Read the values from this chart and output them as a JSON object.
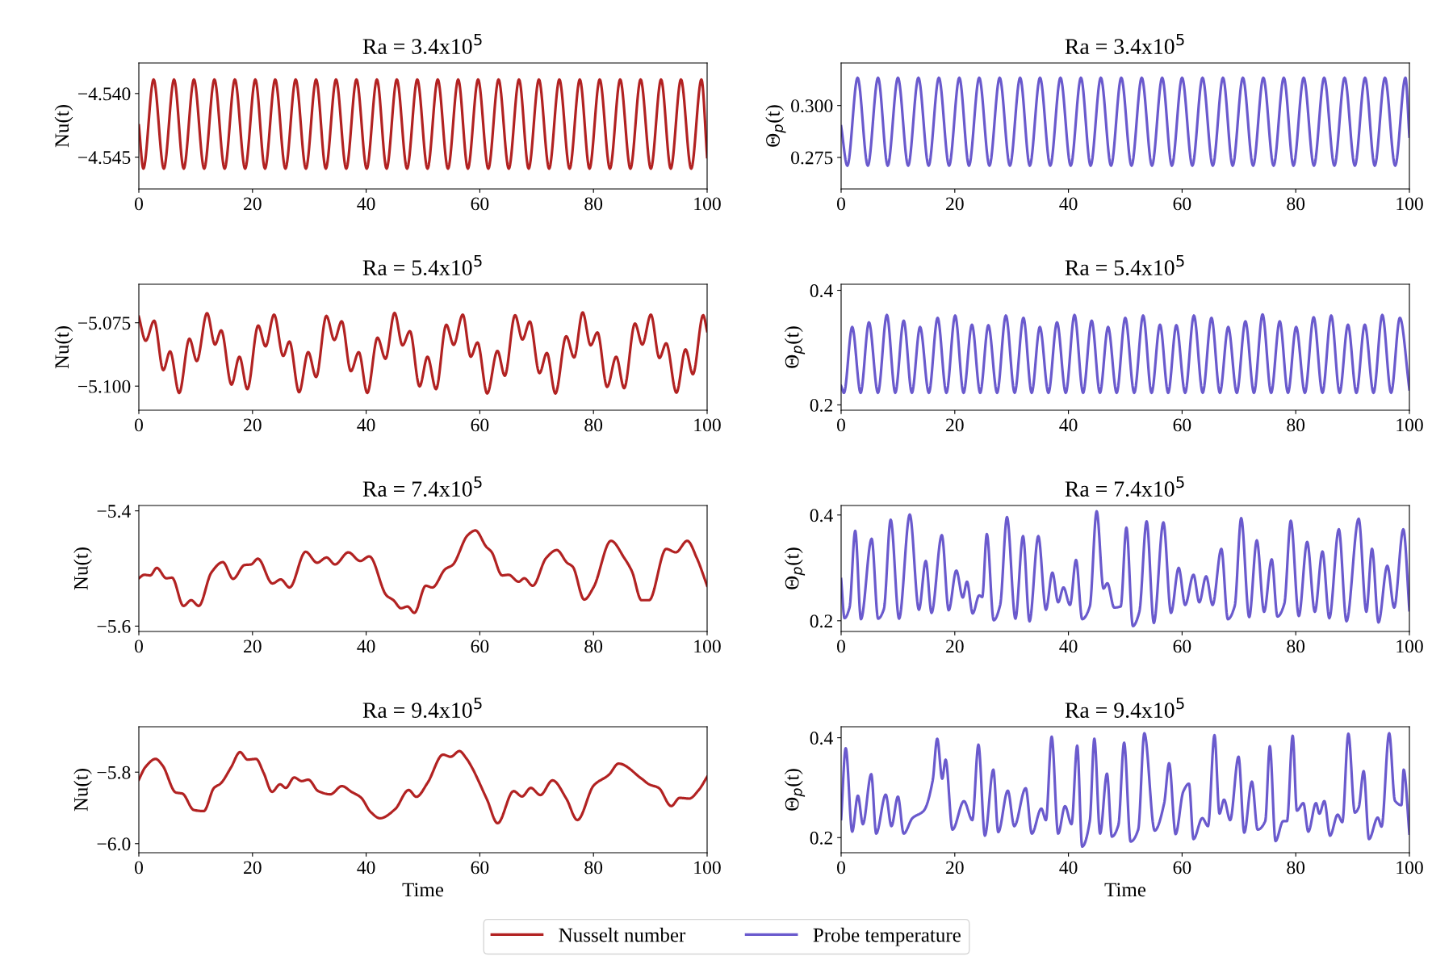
{
  "chart_data": [
    {
      "type": "line",
      "title": "Ra = 3.4x10$^{5}$",
      "ylabel": "Nu(t)",
      "xlim": [
        0,
        100
      ],
      "xticks": [
        0,
        20,
        40,
        60,
        80,
        100
      ],
      "ylim": [
        -4.5475,
        -4.5376
      ],
      "yticks": [
        {
          "value": -4.545,
          "label": "−4.545"
        },
        {
          "value": -4.54,
          "label": "−4.540"
        }
      ],
      "grid": false,
      "legend": "bottom",
      "marker": "none",
      "line_style": "solid",
      "series": [
        {
          "name": "Nusselt number",
          "color": "#b22222",
          "x": [
            0,
            0.8,
            2.6,
            4.4,
            6.2,
            7.9,
            9.7,
            11.5,
            13.3,
            15.1,
            16.9,
            18.7,
            20.5,
            22.2,
            24.0,
            25.8,
            27.6,
            29.4,
            31.2,
            32.9,
            34.7,
            36.5,
            38.3,
            40.1,
            41.9,
            43.6,
            45.4,
            47.2,
            49.0,
            50.8,
            52.6,
            54.4,
            56.2,
            57.9,
            59.7,
            61.5,
            63.3,
            65.1,
            66.9,
            68.6,
            70.4,
            72.2,
            74.0,
            75.8,
            77.6,
            79.3,
            81.1,
            82.9,
            84.7,
            86.5,
            88.3,
            90.1,
            91.9,
            93.6,
            95.4,
            97.2,
            99.0,
            100
          ],
          "values": [
            -4.5425,
            -4.5459,
            -4.5389,
            -4.5459,
            -4.5389,
            -4.5459,
            -4.5389,
            -4.5459,
            -4.5389,
            -4.5459,
            -4.5389,
            -4.5459,
            -4.5389,
            -4.5459,
            -4.5389,
            -4.5459,
            -4.5389,
            -4.5459,
            -4.5389,
            -4.5459,
            -4.5389,
            -4.5459,
            -4.5389,
            -4.5459,
            -4.5389,
            -4.5459,
            -4.5389,
            -4.5459,
            -4.5389,
            -4.5459,
            -4.5389,
            -4.5459,
            -4.5389,
            -4.5459,
            -4.5389,
            -4.5459,
            -4.5389,
            -4.5459,
            -4.5389,
            -4.5459,
            -4.5389,
            -4.5459,
            -4.5389,
            -4.5459,
            -4.5389,
            -4.5459,
            -4.5389,
            -4.5459,
            -4.5389,
            -4.5459,
            -4.5389,
            -4.5459,
            -4.5389,
            -4.5459,
            -4.5389,
            -4.5459,
            -4.5389,
            -4.545
          ]
        }
      ]
    },
    {
      "type": "line",
      "title": "Ra = 3.4x10$^{5}$",
      "ylabel": "Θ$_{p}$(t)",
      "xlim": [
        0,
        100
      ],
      "xticks": [
        0,
        20,
        40,
        60,
        80,
        100
      ],
      "ylim": [
        0.2598,
        0.3205
      ],
      "yticks": [
        0.275,
        {
          "value": 0.3,
          "label": "0.300"
        }
      ],
      "grid": false,
      "legend": "bottom",
      "marker": "none",
      "line_style": "solid",
      "series": [
        {
          "name": "Probe temperature",
          "color": "#6a5acd",
          "x": [
            0,
            1.1,
            2.9,
            4.7,
            6.5,
            8.2,
            10.0,
            11.8,
            13.6,
            15.4,
            17.2,
            19.0,
            20.8,
            22.5,
            24.3,
            26.1,
            27.9,
            29.7,
            31.5,
            33.2,
            35.0,
            36.8,
            38.6,
            40.4,
            42.2,
            43.9,
            45.7,
            47.5,
            49.3,
            51.1,
            52.9,
            54.7,
            56.5,
            58.2,
            60.0,
            61.8,
            63.6,
            65.4,
            67.2,
            68.9,
            70.7,
            72.5,
            74.3,
            76.1,
            77.9,
            79.6,
            81.4,
            83.2,
            85.0,
            86.8,
            88.6,
            90.4,
            92.2,
            93.9,
            95.7,
            97.5,
            99.3,
            100
          ],
          "values": [
            0.29,
            0.271,
            0.3134,
            0.271,
            0.3134,
            0.271,
            0.3134,
            0.271,
            0.3134,
            0.271,
            0.3134,
            0.271,
            0.3134,
            0.271,
            0.3134,
            0.271,
            0.3134,
            0.271,
            0.3134,
            0.271,
            0.3134,
            0.271,
            0.3134,
            0.271,
            0.3134,
            0.271,
            0.3134,
            0.271,
            0.3134,
            0.271,
            0.3134,
            0.271,
            0.3134,
            0.271,
            0.3134,
            0.271,
            0.3134,
            0.271,
            0.3134,
            0.271,
            0.3134,
            0.271,
            0.3134,
            0.271,
            0.3134,
            0.271,
            0.3134,
            0.271,
            0.3134,
            0.271,
            0.3134,
            0.271,
            0.3134,
            0.271,
            0.3134,
            0.271,
            0.3134,
            0.285
          ]
        }
      ]
    },
    {
      "type": "line",
      "title": "Ra = 5.4x10$^{5}$",
      "ylabel": "Nu(t)",
      "xlim": [
        0,
        100
      ],
      "xticks": [
        0,
        20,
        40,
        60,
        80,
        100
      ],
      "ylim": [
        -5.1095,
        -5.0598
      ],
      "yticks": [
        {
          "value": -5.1,
          "label": "−5.100"
        },
        {
          "value": -5.075,
          "label": "−5.075"
        }
      ],
      "grid": false,
      "legend": "bottom",
      "marker": "none",
      "line_style": "solid",
      "series": [
        {
          "name": "Nusselt number",
          "color": "#b22222",
          "x": [
            0,
            1.2,
            2.7,
            4.3,
            5.5,
            7.1,
            8.9,
            10.2,
            12.0,
            13.4,
            14.5,
            16.3,
            17.7,
            19.1,
            21.0,
            22.3,
            23.8,
            25.4,
            26.5,
            28.2,
            29.8,
            31.2,
            33.0,
            34.4,
            35.7,
            37.3,
            38.7,
            40.2,
            42.0,
            43.4,
            45.0,
            46.4,
            47.7,
            49.4,
            50.8,
            52.3,
            54.1,
            55.4,
            57.0,
            58.4,
            59.6,
            61.3,
            63.1,
            64.4,
            66.2,
            67.5,
            68.8,
            70.5,
            71.8,
            73.3,
            75.2,
            76.6,
            78.1,
            79.5,
            80.7,
            82.4,
            84.0,
            85.4,
            87.3,
            88.6,
            90.1,
            91.6,
            92.8,
            94.6,
            96.2,
            97.5,
            99.3,
            100
          ],
          "values": [
            -5.0726,
            -5.0821,
            -5.0742,
            -5.0937,
            -5.0863,
            -5.1027,
            -5.0813,
            -5.0901,
            -5.0712,
            -5.0836,
            -5.078,
            -5.0994,
            -5.0884,
            -5.1012,
            -5.0761,
            -5.0843,
            -5.0718,
            -5.0881,
            -5.0824,
            -5.1024,
            -5.0866,
            -5.0964,
            -5.0723,
            -5.0818,
            -5.0744,
            -5.0941,
            -5.0866,
            -5.1027,
            -5.0809,
            -5.0892,
            -5.0711,
            -5.0839,
            -5.0783,
            -5.1001,
            -5.0884,
            -5.1012,
            -5.0758,
            -5.0837,
            -5.0718,
            -5.0884,
            -5.0828,
            -5.1029,
            -5.0861,
            -5.0959,
            -5.072,
            -5.0816,
            -5.0745,
            -5.0949,
            -5.0869,
            -5.1029,
            -5.0803,
            -5.0887,
            -5.0709,
            -5.0839,
            -5.0788,
            -5.1003,
            -5.0884,
            -5.1008,
            -5.0753,
            -5.0836,
            -5.0718,
            -5.0889,
            -5.0831,
            -5.1026,
            -5.0855,
            -5.0953,
            -5.072,
            -5.0783
          ]
        }
      ]
    },
    {
      "type": "line",
      "title": "Ra = 5.4x10$^{5}$",
      "ylabel": "Θ$_{p}$(t)",
      "xlim": [
        0,
        100
      ],
      "xticks": [
        0,
        20,
        40,
        60,
        80,
        100
      ],
      "ylim": [
        0.1907,
        0.4106
      ],
      "yticks": [
        0.2,
        0.4
      ],
      "grid": false,
      "legend": "bottom",
      "marker": "none",
      "line_style": "solid",
      "series": [
        {
          "name": "Probe temperature",
          "color": "#6a5acd",
          "x": [
            0,
            0.5,
            1.95,
            3.43,
            4.9,
            6.48,
            8.05,
            9.53,
            11.01,
            12.45,
            13.89,
            15.44,
            16.98,
            18.53,
            20.07,
            21.55,
            23.02,
            24.47,
            25.91,
            27.45,
            28.99,
            30.54,
            32.08,
            33.53,
            34.97,
            36.48,
            37.99,
            39.53,
            41.07,
            42.58,
            44.09,
            45.54,
            46.98,
            48.49,
            50.0,
            51.58,
            53.15,
            54.63,
            56.11,
            57.55,
            58.99,
            60.54,
            62.08,
            63.63,
            65.17,
            66.65,
            68.12,
            69.63,
            71.14,
            72.65,
            74.16,
            75.67,
            77.18,
            78.63,
            80.07,
            81.61,
            83.15,
            84.7,
            86.24,
            87.72,
            89.19,
            90.67,
            92.15,
            93.69,
            95.23,
            96.78,
            98.32,
            100
          ],
          "values": [
            0.233,
            0.221,
            0.336,
            0.221,
            0.344,
            0.221,
            0.357,
            0.221,
            0.347,
            0.221,
            0.336,
            0.221,
            0.352,
            0.221,
            0.356,
            0.221,
            0.34,
            0.221,
            0.339,
            0.221,
            0.356,
            0.221,
            0.352,
            0.221,
            0.336,
            0.221,
            0.344,
            0.221,
            0.357,
            0.221,
            0.347,
            0.221,
            0.336,
            0.221,
            0.352,
            0.221,
            0.356,
            0.221,
            0.34,
            0.221,
            0.339,
            0.221,
            0.356,
            0.221,
            0.352,
            0.221,
            0.336,
            0.221,
            0.346,
            0.221,
            0.358,
            0.221,
            0.346,
            0.221,
            0.336,
            0.221,
            0.353,
            0.221,
            0.356,
            0.221,
            0.34,
            0.221,
            0.34,
            0.221,
            0.357,
            0.221,
            0.352,
            0.227
          ]
        }
      ]
    },
    {
      "type": "line",
      "title": "Ra = 7.4x10$^{5}$",
      "ylabel": "Nu(t)",
      "xlim": [
        0,
        100
      ],
      "xticks": [
        0,
        20,
        40,
        60,
        80,
        100
      ],
      "ylim": [
        -5.6093,
        -5.3907
      ],
      "yticks": [
        {
          "value": -5.6,
          "label": "−5.6"
        },
        {
          "value": -5.4,
          "label": "−5.4"
        }
      ],
      "grid": false,
      "legend": "bottom",
      "marker": "none",
      "line_style": "solid",
      "series": [
        {
          "name": "Nusselt number",
          "color": "#b22222",
          "x": [
            0,
            0.94,
            2.01,
            3.16,
            4.84,
            5.84,
            7.86,
            9.2,
            10.54,
            12.76,
            14.78,
            16.59,
            18.6,
            19.74,
            20.95,
            23.51,
            24.98,
            26.53,
            29.35,
            31.36,
            33.04,
            34.52,
            36.87,
            38.95,
            40.56,
            43.59,
            44.8,
            46.14,
            47.28,
            48.49,
            50.5,
            51.65,
            53.93,
            55.2,
            57.89,
            59.23,
            61.11,
            62.05,
            63.94,
            65.08,
            66.82,
            67.83,
            69.31,
            71.66,
            73.54,
            75.35,
            76.36,
            78.37,
            80.05,
            83.08,
            85.43,
            86.77,
            88.45,
            89.79,
            92.81,
            94.49,
            96.51,
            98.19,
            100
          ],
          "values": [
            -5.517,
            -5.511,
            -5.512,
            -5.499,
            -5.517,
            -5.516,
            -5.565,
            -5.555,
            -5.565,
            -5.507,
            -5.489,
            -5.518,
            -5.494,
            -5.493,
            -5.483,
            -5.526,
            -5.519,
            -5.533,
            -5.471,
            -5.49,
            -5.481,
            -5.493,
            -5.472,
            -5.487,
            -5.479,
            -5.547,
            -5.555,
            -5.569,
            -5.566,
            -5.577,
            -5.53,
            -5.533,
            -5.501,
            -5.494,
            -5.442,
            -5.434,
            -5.462,
            -5.471,
            -5.512,
            -5.511,
            -5.523,
            -5.517,
            -5.53,
            -5.482,
            -5.468,
            -5.49,
            -5.497,
            -5.554,
            -5.532,
            -5.452,
            -5.482,
            -5.505,
            -5.555,
            -5.555,
            -5.466,
            -5.472,
            -5.452,
            -5.482,
            -5.53
          ]
        }
      ]
    },
    {
      "type": "line",
      "title": "Ra = 7.4x10$^{5}$",
      "ylabel": "Θ$_{p}$(t)",
      "xlim": [
        0,
        100
      ],
      "xticks": [
        0,
        20,
        40,
        60,
        80,
        100
      ],
      "ylim": [
        0.1798,
        0.418
      ],
      "yticks": [
        0.2,
        0.4
      ],
      "grid": false,
      "legend": "bottom",
      "marker": "none",
      "line_style": "solid",
      "series": [
        {
          "name": "Probe temperature",
          "color": "#6a5acd",
          "x": [
            0,
            0.6,
            1.48,
            2.48,
            3.49,
            5.37,
            6.51,
            7.52,
            8.72,
            10.2,
            12.08,
            13.69,
            14.9,
            15.91,
            17.72,
            18.93,
            20.27,
            21.41,
            22.15,
            23.15,
            24.3,
            24.83,
            25.64,
            26.85,
            27.99,
            29.19,
            30.67,
            32.01,
            33.15,
            34.7,
            36.04,
            37.18,
            38.19,
            39.13,
            40.27,
            41.34,
            42.42,
            43.76,
            44.97,
            46.17,
            46.85,
            48.05,
            49.19,
            50.2,
            51.34,
            52.48,
            53.76,
            55.03,
            56.71,
            58.05,
            59.4,
            60.54,
            62.01,
            63.02,
            64.23,
            65.37,
            66.91,
            68.05,
            69.26,
            70.4,
            71.81,
            73.15,
            74.43,
            75.77,
            76.78,
            77.99,
            79.13,
            80.54,
            82.01,
            83.36,
            84.7,
            85.91,
            87.58,
            88.93,
            91.07,
            92.42,
            93.42,
            94.56,
            96.11,
            97.32,
            98.93,
            100
          ],
          "values": [
            0.279,
            0.205,
            0.225,
            0.37,
            0.203,
            0.355,
            0.204,
            0.222,
            0.391,
            0.204,
            0.401,
            0.221,
            0.313,
            0.215,
            0.362,
            0.22,
            0.295,
            0.244,
            0.274,
            0.214,
            0.248,
            0.245,
            0.364,
            0.201,
            0.23,
            0.396,
            0.204,
            0.36,
            0.199,
            0.36,
            0.221,
            0.291,
            0.235,
            0.263,
            0.23,
            0.315,
            0.203,
            0.227,
            0.407,
            0.261,
            0.271,
            0.225,
            0.227,
            0.376,
            0.19,
            0.217,
            0.388,
            0.196,
            0.386,
            0.215,
            0.3,
            0.23,
            0.287,
            0.235,
            0.284,
            0.23,
            0.336,
            0.203,
            0.228,
            0.394,
            0.207,
            0.352,
            0.217,
            0.316,
            0.208,
            0.232,
            0.389,
            0.209,
            0.349,
            0.217,
            0.331,
            0.205,
            0.373,
            0.199,
            0.393,
            0.217,
            0.336,
            0.197,
            0.304,
            0.225,
            0.373,
            0.22
          ]
        }
      ]
    },
    {
      "type": "line",
      "title": "Ra = 9.4x10$^{5}$",
      "ylabel": "Nu(t)",
      "xlabel": "Time",
      "xlim": [
        0,
        100
      ],
      "xticks": [
        0,
        20,
        40,
        60,
        80,
        100
      ],
      "ylim": [
        -6.0254,
        -5.673
      ],
      "yticks": [
        {
          "value": -6.0,
          "label": "−6.0"
        },
        {
          "value": -5.8,
          "label": "−5.8"
        }
      ],
      "grid": false,
      "legend": "bottom",
      "marker": "none",
      "line_style": "solid",
      "series": [
        {
          "name": "Nusselt number",
          "color": "#b22222",
          "x": [
            0,
            1.14,
            2.95,
            4.16,
            6.51,
            7.66,
            9.67,
            11.42,
            13.23,
            14.37,
            16.25,
            17.8,
            19.14,
            20.62,
            21.96,
            23.44,
            24.85,
            25.86,
            27.33,
            28.68,
            29.82,
            31.56,
            33.71,
            35.73,
            37.41,
            39.09,
            40.77,
            42.44,
            45.13,
            47.48,
            48.83,
            50.84,
            53.53,
            54.87,
            56.41,
            57.56,
            61.25,
            63.13,
            65.95,
            67.43,
            68.97,
            70.65,
            72.8,
            75.22,
            77.17,
            80.05,
            82.74,
            84.42,
            88.45,
            89.79,
            91.47,
            93.69,
            95.16,
            96.84,
            98.52,
            100
          ],
          "values": [
            -5.821,
            -5.786,
            -5.763,
            -5.781,
            -5.857,
            -5.86,
            -5.906,
            -5.909,
            -5.844,
            -5.832,
            -5.786,
            -5.744,
            -5.765,
            -5.763,
            -5.802,
            -5.855,
            -5.834,
            -5.844,
            -5.815,
            -5.825,
            -5.821,
            -5.853,
            -5.862,
            -5.839,
            -5.855,
            -5.871,
            -5.911,
            -5.929,
            -5.903,
            -5.85,
            -5.869,
            -5.829,
            -5.751,
            -5.757,
            -5.741,
            -5.76,
            -5.876,
            -5.943,
            -5.853,
            -5.868,
            -5.844,
            -5.864,
            -5.823,
            -5.874,
            -5.934,
            -5.837,
            -5.807,
            -5.776,
            -5.818,
            -5.834,
            -5.844,
            -5.895,
            -5.872,
            -5.874,
            -5.85,
            -5.813
          ]
        }
      ]
    },
    {
      "type": "line",
      "title": "Ra = 9.4x10$^{5}$",
      "ylabel": "Θ$_{p}$(t)",
      "xlabel": "Time",
      "xlim": [
        0,
        100
      ],
      "xticks": [
        0,
        20,
        40,
        60,
        80,
        100
      ],
      "ylim": [
        0.1697,
        0.422
      ],
      "yticks": [
        0.2,
        0.4
      ],
      "grid": false,
      "legend": "bottom",
      "marker": "none",
      "line_style": "solid",
      "series": [
        {
          "name": "Probe temperature",
          "color": "#6a5acd",
          "x": [
            0,
            0.81,
            1.95,
            2.95,
            3.83,
            5.3,
            6.17,
            7.85,
            8.86,
            10.0,
            11.01,
            12.55,
            14.56,
            16.11,
            16.91,
            17.79,
            18.39,
            19.6,
            21.61,
            23.09,
            24.16,
            25.3,
            26.78,
            27.65,
            29.33,
            30.47,
            32.48,
            33.56,
            35.23,
            36.04,
            37.05,
            38.19,
            39.4,
            40.54,
            41.54,
            42.42,
            43.76,
            44.56,
            45.57,
            46.78,
            47.65,
            48.79,
            49.8,
            50.94,
            52.28,
            53.36,
            55.17,
            56.85,
            57.72,
            58.86,
            60.2,
            61.21,
            62.01,
            63.56,
            64.56,
            65.7,
            66.58,
            67.38,
            68.46,
            69.93,
            70.94,
            72.28,
            73.29,
            74.63,
            75.44,
            76.44,
            77.79,
            78.46,
            79.46,
            80.2,
            81.34,
            82.21,
            83.56,
            84.16,
            85.03,
            86.04,
            87.38,
            88.19,
            89.26,
            90.4,
            91.07,
            91.95,
            92.89,
            94.43,
            95.1,
            96.44,
            97.45,
            98.59,
            98.99,
            100
          ],
          "values": [
            0.237,
            0.379,
            0.212,
            0.284,
            0.227,
            0.327,
            0.208,
            0.286,
            0.223,
            0.282,
            0.208,
            0.239,
            0.254,
            0.314,
            0.398,
            0.318,
            0.356,
            0.216,
            0.273,
            0.235,
            0.386,
            0.204,
            0.336,
            0.211,
            0.294,
            0.223,
            0.299,
            0.208,
            0.258,
            0.235,
            0.402,
            0.208,
            0.263,
            0.227,
            0.384,
            0.182,
            0.233,
            0.398,
            0.208,
            0.328,
            0.202,
            0.225,
            0.39,
            0.192,
            0.216,
            0.409,
            0.214,
            0.269,
            0.349,
            0.207,
            0.292,
            0.308,
            0.197,
            0.239,
            0.223,
            0.405,
            0.248,
            0.276,
            0.235,
            0.362,
            0.21,
            0.312,
            0.216,
            0.233,
            0.383,
            0.193,
            0.233,
            0.233,
            0.404,
            0.254,
            0.269,
            0.212,
            0.269,
            0.248,
            0.273,
            0.204,
            0.246,
            0.231,
            0.408,
            0.25,
            0.26,
            0.333,
            0.197,
            0.24,
            0.222,
            0.409,
            0.274,
            0.265,
            0.336,
            0.208
          ]
        }
      ]
    }
  ]
}
